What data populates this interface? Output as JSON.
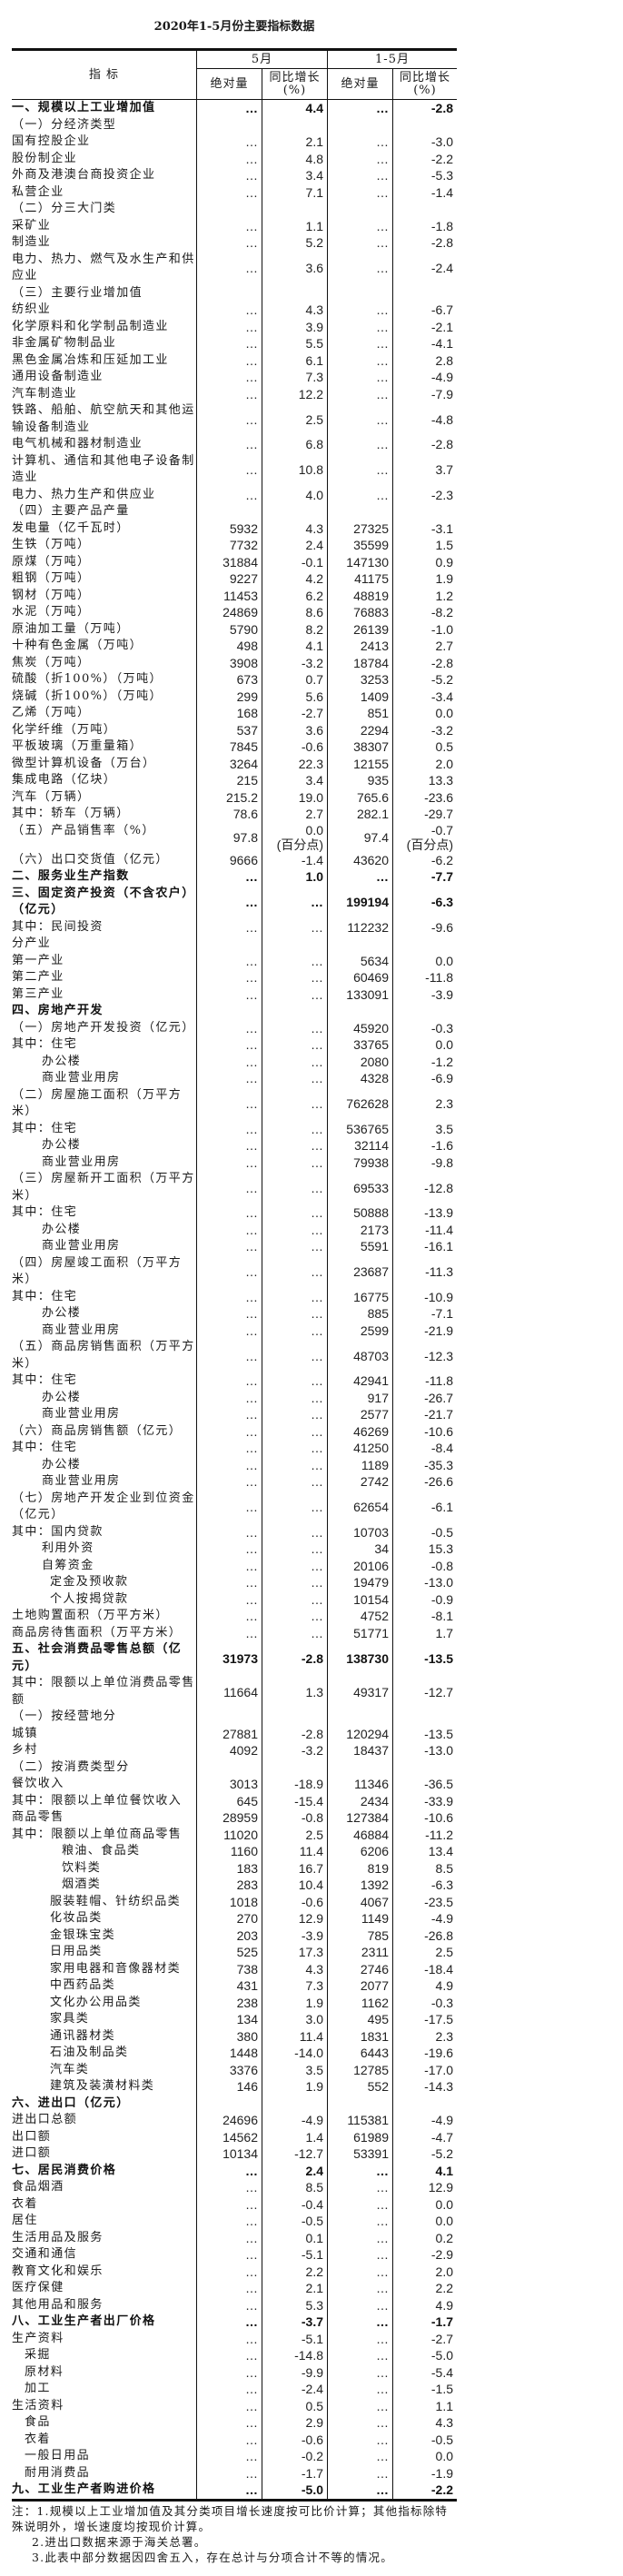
{
  "title": "2020年1-5月份主要指标数据",
  "header": {
    "indicator": "指  标",
    "may": "5月",
    "jan_may": "1-5月",
    "absolute": "绝对量",
    "yoy": "同比增长\n(%)"
  },
  "rows": [
    {
      "label": "一、规模以上工业增加值",
      "values": [
        "…",
        "4.4",
        "…",
        "-2.8"
      ],
      "bold": true,
      "level": 0
    },
    {
      "label": "（一）分经济类型",
      "values": [
        "",
        "",
        "",
        ""
      ],
      "level": 0
    },
    {
      "label": "国有控股企业",
      "values": [
        "…",
        "2.1",
        "…",
        "-3.0"
      ],
      "level": 0
    },
    {
      "label": "股份制企业",
      "values": [
        "…",
        "4.8",
        "…",
        "-2.2"
      ],
      "level": 0
    },
    {
      "label": "外商及港澳台商投资企业",
      "values": [
        "…",
        "3.4",
        "…",
        "-5.3"
      ],
      "level": 0
    },
    {
      "label": "私营企业",
      "values": [
        "…",
        "7.1",
        "…",
        "-1.4"
      ],
      "level": 0
    },
    {
      "label": "（二）分三大门类",
      "values": [
        "",
        "",
        "",
        ""
      ],
      "level": 0
    },
    {
      "label": "采矿业",
      "values": [
        "…",
        "1.1",
        "…",
        "-1.8"
      ],
      "level": 0
    },
    {
      "label": "制造业",
      "values": [
        "…",
        "5.2",
        "…",
        "-2.8"
      ],
      "level": 0
    },
    {
      "label": "电力、热力、燃气及水生产和供应业",
      "values": [
        "…",
        "3.6",
        "…",
        "-2.4"
      ],
      "level": 0
    },
    {
      "label": "（三）主要行业增加值",
      "values": [
        "",
        "",
        "",
        ""
      ],
      "level": 0
    },
    {
      "label": "纺织业",
      "values": [
        "…",
        "4.3",
        "…",
        "-6.7"
      ],
      "level": 0
    },
    {
      "label": "化学原料和化学制品制造业",
      "values": [
        "…",
        "3.9",
        "…",
        "-2.1"
      ],
      "level": 0
    },
    {
      "label": "非金属矿物制品业",
      "values": [
        "…",
        "5.5",
        "…",
        "-4.1"
      ],
      "level": 0
    },
    {
      "label": "黑色金属冶炼和压延加工业",
      "values": [
        "…",
        "6.1",
        "…",
        "2.8"
      ],
      "level": 0
    },
    {
      "label": "通用设备制造业",
      "values": [
        "…",
        "7.3",
        "…",
        "-4.9"
      ],
      "level": 0
    },
    {
      "label": "汽车制造业",
      "values": [
        "…",
        "12.2",
        "…",
        "-7.9"
      ],
      "level": 0
    },
    {
      "label": "铁路、船舶、航空航天和其他运输设备制造业",
      "values": [
        "…",
        "2.5",
        "…",
        "-4.8"
      ],
      "level": 0
    },
    {
      "label": "电气机械和器材制造业",
      "values": [
        "…",
        "6.8",
        "…",
        "-2.8"
      ],
      "level": 0
    },
    {
      "label": "计算机、通信和其他电子设备制造业",
      "values": [
        "…",
        "10.8",
        "…",
        "3.7"
      ],
      "level": 0
    },
    {
      "label": "电力、热力生产和供应业",
      "values": [
        "…",
        "4.0",
        "…",
        "-2.3"
      ],
      "level": 0
    },
    {
      "label": "（四）主要产品产量",
      "values": [
        "",
        "",
        "",
        ""
      ],
      "level": 0
    },
    {
      "label": "发电量（亿千瓦时）",
      "values": [
        "5932",
        "4.3",
        "27325",
        "-3.1"
      ],
      "level": 0
    },
    {
      "label": "生铁（万吨）",
      "values": [
        "7732",
        "2.4",
        "35599",
        "1.5"
      ],
      "level": 0
    },
    {
      "label": "原煤（万吨）",
      "values": [
        "31884",
        "-0.1",
        "147130",
        "0.9"
      ],
      "level": 0
    },
    {
      "label": "粗钢（万吨）",
      "values": [
        "9227",
        "4.2",
        "41175",
        "1.9"
      ],
      "level": 0
    },
    {
      "label": "钢材（万吨）",
      "values": [
        "11453",
        "6.2",
        "48819",
        "1.2"
      ],
      "level": 0
    },
    {
      "label": "水泥（万吨）",
      "values": [
        "24869",
        "8.6",
        "76883",
        "-8.2"
      ],
      "level": 0
    },
    {
      "label": "原油加工量（万吨）",
      "values": [
        "5790",
        "8.2",
        "26139",
        "-1.0"
      ],
      "level": 0
    },
    {
      "label": "十种有色金属（万吨）",
      "values": [
        "498",
        "4.1",
        "2413",
        "2.7"
      ],
      "level": 0
    },
    {
      "label": "焦炭（万吨）",
      "values": [
        "3908",
        "-3.2",
        "18784",
        "-2.8"
      ],
      "level": 0
    },
    {
      "label": "硫酸（折100%）（万吨）",
      "values": [
        "673",
        "0.7",
        "3253",
        "-5.2"
      ],
      "level": 0
    },
    {
      "label": "烧碱（折100%）（万吨）",
      "values": [
        "299",
        "5.6",
        "1409",
        "-3.4"
      ],
      "level": 0
    },
    {
      "label": "乙烯（万吨）",
      "values": [
        "168",
        "-2.7",
        "851",
        "0.0"
      ],
      "level": 0
    },
    {
      "label": "化学纤维（万吨）",
      "values": [
        "537",
        "3.6",
        "2294",
        "-3.2"
      ],
      "level": 0
    },
    {
      "label": "平板玻璃（万重量箱）",
      "values": [
        "7845",
        "-0.6",
        "38307",
        "0.5"
      ],
      "level": 0
    },
    {
      "label": "微型计算机设备（万台）",
      "values": [
        "3264",
        "22.3",
        "12155",
        "2.0"
      ],
      "level": 0
    },
    {
      "label": "集成电路（亿块）",
      "values": [
        "215",
        "3.4",
        "935",
        "13.3"
      ],
      "level": 0
    },
    {
      "label": "汽车（万辆）",
      "values": [
        "215.2",
        "19.0",
        "765.6",
        "-23.6"
      ],
      "level": 0
    },
    {
      "label": "其中：轿车（万辆）",
      "values": [
        "78.6",
        "2.7",
        "282.1",
        "-29.7"
      ],
      "level": 0
    },
    {
      "label": "（五）产品销售率（%）",
      "values": [
        "97.8",
        "0.0\n(百分点)",
        "97.4",
        "-0.7\n(百分点)"
      ],
      "level": 0
    },
    {
      "label": "（六）出口交货值（亿元）",
      "values": [
        "9666",
        "-1.4",
        "43620",
        "-6.2"
      ],
      "level": 0
    },
    {
      "label": "二、服务业生产指数",
      "values": [
        "…",
        "1.0",
        "…",
        "-7.7"
      ],
      "bold": true,
      "level": 0
    },
    {
      "label": "三、固定资产投资（不含农户）（亿元）",
      "values": [
        "…",
        "…",
        "199194",
        "-6.3"
      ],
      "bold": true,
      "level": 0
    },
    {
      "label": "其中：民间投资",
      "values": [
        "…",
        "…",
        "112232",
        "-9.6"
      ],
      "level": 0
    },
    {
      "label": "分产业",
      "values": [
        "",
        "",
        "",
        ""
      ],
      "level": 0
    },
    {
      "label": "第一产业",
      "values": [
        "…",
        "…",
        "5634",
        "0.0"
      ],
      "level": 0
    },
    {
      "label": "第二产业",
      "values": [
        "…",
        "…",
        "60469",
        "-11.8"
      ],
      "level": 0
    },
    {
      "label": "第三产业",
      "values": [
        "…",
        "…",
        "133091",
        "-3.9"
      ],
      "level": 0
    },
    {
      "label": "四、房地产开发",
      "values": [
        "",
        "",
        "",
        ""
      ],
      "bold": true,
      "level": 0
    },
    {
      "label": "（一）房地产开发投资（亿元）",
      "values": [
        "…",
        "…",
        "45920",
        "-0.3"
      ],
      "level": 0
    },
    {
      "label": "其中：住宅",
      "values": [
        "…",
        "…",
        "33765",
        "0.0"
      ],
      "level": 0
    },
    {
      "label": "办公楼",
      "values": [
        "…",
        "…",
        "2080",
        "-1.2"
      ],
      "level": 2
    },
    {
      "label": "商业营业用房",
      "values": [
        "…",
        "…",
        "4328",
        "-6.9"
      ],
      "level": 2
    },
    {
      "label": "（二）房屋施工面积（万平方米）",
      "values": [
        "…",
        "…",
        "762628",
        "2.3"
      ],
      "level": 0
    },
    {
      "label": "其中：住宅",
      "values": [
        "…",
        "…",
        "536765",
        "3.5"
      ],
      "level": 0
    },
    {
      "label": "办公楼",
      "values": [
        "…",
        "…",
        "32114",
        "-1.6"
      ],
      "level": 2
    },
    {
      "label": "商业营业用房",
      "values": [
        "…",
        "…",
        "79938",
        "-9.8"
      ],
      "level": 2
    },
    {
      "label": "（三）房屋新开工面积（万平方米）",
      "values": [
        "…",
        "…",
        "69533",
        "-12.8"
      ],
      "level": 0
    },
    {
      "label": "其中：住宅",
      "values": [
        "…",
        "…",
        "50888",
        "-13.9"
      ],
      "level": 0
    },
    {
      "label": "办公楼",
      "values": [
        "…",
        "…",
        "2173",
        "-11.4"
      ],
      "level": 2
    },
    {
      "label": "商业营业用房",
      "values": [
        "…",
        "…",
        "5591",
        "-16.1"
      ],
      "level": 2
    },
    {
      "label": "（四）房屋竣工面积（万平方米）",
      "values": [
        "…",
        "…",
        "23687",
        "-11.3"
      ],
      "level": 0
    },
    {
      "label": "其中：住宅",
      "values": [
        "…",
        "…",
        "16775",
        "-10.9"
      ],
      "level": 0
    },
    {
      "label": "办公楼",
      "values": [
        "…",
        "…",
        "885",
        "-7.1"
      ],
      "level": 2
    },
    {
      "label": "商业营业用房",
      "values": [
        "…",
        "…",
        "2599",
        "-21.9"
      ],
      "level": 2
    },
    {
      "label": "（五）商品房销售面积（万平方米）",
      "values": [
        "…",
        "…",
        "48703",
        "-12.3"
      ],
      "level": 0
    },
    {
      "label": "其中：住宅",
      "values": [
        "…",
        "…",
        "42941",
        "-11.8"
      ],
      "level": 0
    },
    {
      "label": "办公楼",
      "values": [
        "…",
        "…",
        "917",
        "-26.7"
      ],
      "level": 2
    },
    {
      "label": "商业营业用房",
      "values": [
        "…",
        "…",
        "2577",
        "-21.7"
      ],
      "level": 2
    },
    {
      "label": "（六）商品房销售额（亿元）",
      "values": [
        "…",
        "…",
        "46269",
        "-10.6"
      ],
      "level": 0
    },
    {
      "label": "其中：住宅",
      "values": [
        "…",
        "…",
        "41250",
        "-8.4"
      ],
      "level": 0
    },
    {
      "label": "办公楼",
      "values": [
        "…",
        "…",
        "1189",
        "-35.3"
      ],
      "level": 2
    },
    {
      "label": "商业营业用房",
      "values": [
        "…",
        "…",
        "2742",
        "-26.6"
      ],
      "level": 2
    },
    {
      "label": "（七）房地产开发企业到位资金（亿元）",
      "values": [
        "…",
        "…",
        "62654",
        "-6.1"
      ],
      "level": 0
    },
    {
      "label": "其中：国内贷款",
      "values": [
        "…",
        "…",
        "10703",
        "-0.5"
      ],
      "level": 0
    },
    {
      "label": "利用外资",
      "values": [
        "…",
        "…",
        "34",
        "15.3"
      ],
      "level": 2
    },
    {
      "label": "自筹资金",
      "values": [
        "…",
        "…",
        "20106",
        "-0.8"
      ],
      "level": 2
    },
    {
      "label": "定金及预收款",
      "values": [
        "…",
        "…",
        "19479",
        "-13.0"
      ],
      "level": 3
    },
    {
      "label": "个人按揭贷款",
      "values": [
        "…",
        "…",
        "10154",
        "-0.9"
      ],
      "level": 3
    },
    {
      "label": "土地购置面积（万平方米）",
      "values": [
        "…",
        "…",
        "4752",
        "-8.1"
      ],
      "level": 0
    },
    {
      "label": "商品房待售面积（万平方米）",
      "values": [
        "…",
        "…",
        "51771",
        "1.7"
      ],
      "level": 0
    },
    {
      "label": "五、社会消费品零售总额（亿元）",
      "values": [
        "31973",
        "-2.8",
        "138730",
        "-13.5"
      ],
      "bold": true,
      "level": 0
    },
    {
      "label": "其中：限额以上单位消费品零售额",
      "values": [
        "11664",
        "1.3",
        "49317",
        "-12.7"
      ],
      "level": 0
    },
    {
      "label": "（一）按经营地分",
      "values": [
        "",
        "",
        "",
        ""
      ],
      "level": 0
    },
    {
      "label": "城镇",
      "values": [
        "27881",
        "-2.8",
        "120294",
        "-13.5"
      ],
      "level": 0
    },
    {
      "label": "乡村",
      "values": [
        "4092",
        "-3.2",
        "18437",
        "-13.0"
      ],
      "level": 0
    },
    {
      "label": "（二）按消费类型分",
      "values": [
        "",
        "",
        "",
        ""
      ],
      "level": 0
    },
    {
      "label": "餐饮收入",
      "values": [
        "3013",
        "-18.9",
        "11346",
        "-36.5"
      ],
      "level": 0
    },
    {
      "label": "其中：限额以上单位餐饮收入",
      "values": [
        "645",
        "-15.4",
        "2434",
        "-33.9"
      ],
      "level": 0
    },
    {
      "label": "商品零售",
      "values": [
        "28959",
        "-0.8",
        "127384",
        "-10.6"
      ],
      "level": 0
    },
    {
      "label": "其中：限额以上单位商品零售",
      "values": [
        "11020",
        "2.5",
        "46884",
        "-11.2"
      ],
      "level": 0
    },
    {
      "label": "粮油、食品类",
      "values": [
        "1160",
        "11.4",
        "6206",
        "13.4"
      ],
      "level": 4
    },
    {
      "label": "饮料类",
      "values": [
        "183",
        "16.7",
        "819",
        "8.5"
      ],
      "level": 4
    },
    {
      "label": "烟酒类",
      "values": [
        "283",
        "10.4",
        "1392",
        "-6.3"
      ],
      "level": 4
    },
    {
      "label": "服装鞋帽、针纺织品类",
      "values": [
        "1018",
        "-0.6",
        "4067",
        "-23.5"
      ],
      "level": 3
    },
    {
      "label": "化妆品类",
      "values": [
        "270",
        "12.9",
        "1149",
        "-4.9"
      ],
      "level": 3
    },
    {
      "label": "金银珠宝类",
      "values": [
        "203",
        "-3.9",
        "785",
        "-26.8"
      ],
      "level": 3
    },
    {
      "label": "日用品类",
      "values": [
        "525",
        "17.3",
        "2311",
        "2.5"
      ],
      "level": 3
    },
    {
      "label": "家用电器和音像器材类",
      "values": [
        "738",
        "4.3",
        "2746",
        "-18.4"
      ],
      "level": 3
    },
    {
      "label": "中西药品类",
      "values": [
        "431",
        "7.3",
        "2077",
        "4.9"
      ],
      "level": 3
    },
    {
      "label": "文化办公用品类",
      "values": [
        "238",
        "1.9",
        "1162",
        "-0.3"
      ],
      "level": 3
    },
    {
      "label": "家具类",
      "values": [
        "134",
        "3.0",
        "495",
        "-17.5"
      ],
      "level": 3
    },
    {
      "label": "通讯器材类",
      "values": [
        "380",
        "11.4",
        "1831",
        "2.3"
      ],
      "level": 3
    },
    {
      "label": "石油及制品类",
      "values": [
        "1448",
        "-14.0",
        "6443",
        "-19.6"
      ],
      "level": 3
    },
    {
      "label": "汽车类",
      "values": [
        "3376",
        "3.5",
        "12785",
        "-17.0"
      ],
      "level": 3
    },
    {
      "label": "建筑及装潢材料类",
      "values": [
        "146",
        "1.9",
        "552",
        "-14.3"
      ],
      "level": 3
    },
    {
      "label": "六、进出口（亿元）",
      "values": [
        "",
        "",
        "",
        ""
      ],
      "bold": true,
      "level": 0
    },
    {
      "label": "进出口总额",
      "values": [
        "24696",
        "-4.9",
        "115381",
        "-4.9"
      ],
      "level": 0
    },
    {
      "label": "出口额",
      "values": [
        "14562",
        "1.4",
        "61989",
        "-4.7"
      ],
      "level": 0
    },
    {
      "label": "进口额",
      "values": [
        "10134",
        "-12.7",
        "53391",
        "-5.2"
      ],
      "level": 0
    },
    {
      "label": "七、居民消费价格",
      "values": [
        "…",
        "2.4",
        "…",
        "4.1"
      ],
      "bold": true,
      "level": 0
    },
    {
      "label": "食品烟酒",
      "values": [
        "…",
        "8.5",
        "…",
        "12.9"
      ],
      "level": 0
    },
    {
      "label": "衣着",
      "values": [
        "…",
        "-0.4",
        "…",
        "0.0"
      ],
      "level": 0
    },
    {
      "label": "居住",
      "values": [
        "…",
        "-0.5",
        "…",
        "0.0"
      ],
      "level": 0
    },
    {
      "label": "生活用品及服务",
      "values": [
        "…",
        "0.1",
        "…",
        "0.2"
      ],
      "level": 0
    },
    {
      "label": "交通和通信",
      "values": [
        "…",
        "-5.1",
        "…",
        "-2.9"
      ],
      "level": 0
    },
    {
      "label": "教育文化和娱乐",
      "values": [
        "…",
        "2.2",
        "…",
        "2.0"
      ],
      "level": 0
    },
    {
      "label": "医疗保健",
      "values": [
        "…",
        "2.1",
        "…",
        "2.2"
      ],
      "level": 0
    },
    {
      "label": "其他用品和服务",
      "values": [
        "…",
        "5.3",
        "…",
        "4.9"
      ],
      "level": 0
    },
    {
      "label": "八、工业生产者出厂价格",
      "values": [
        "…",
        "-3.7",
        "…",
        "-1.7"
      ],
      "bold": true,
      "level": 0
    },
    {
      "label": "生产资料",
      "values": [
        "…",
        "-5.1",
        "…",
        "-2.7"
      ],
      "level": 0
    },
    {
      "label": "采掘",
      "values": [
        "…",
        "-14.8",
        "…",
        "-5.0"
      ],
      "level": 1
    },
    {
      "label": "原材料",
      "values": [
        "…",
        "-9.9",
        "…",
        "-5.4"
      ],
      "level": 1
    },
    {
      "label": "加工",
      "values": [
        "…",
        "-2.4",
        "…",
        "-1.5"
      ],
      "level": 1
    },
    {
      "label": "生活资料",
      "values": [
        "…",
        "0.5",
        "…",
        "1.1"
      ],
      "level": 0
    },
    {
      "label": "食品",
      "values": [
        "…",
        "2.9",
        "…",
        "4.3"
      ],
      "level": 1
    },
    {
      "label": "衣着",
      "values": [
        "…",
        "-0.6",
        "…",
        "-0.5"
      ],
      "level": 1
    },
    {
      "label": "一般日用品",
      "values": [
        "…",
        "-0.2",
        "…",
        "0.0"
      ],
      "level": 1
    },
    {
      "label": "耐用消费品",
      "values": [
        "…",
        "-1.7",
        "…",
        "-1.9"
      ],
      "level": 1
    },
    {
      "label": "九、工业生产者购进价格",
      "values": [
        "…",
        "-5.0",
        "…",
        "-2.2"
      ],
      "bold": true,
      "level": 0
    }
  ],
  "notes": [
    "注：1.规模以上工业增加值及其分类项目增长速度按可比价计算；其他指标除特殊说明外，增长速度均按现价计算。",
    "2.进出口数据来源于海关总署。",
    "3.此表中部分数据因四舍五入，存在总计与分项合计不等的情况。"
  ]
}
